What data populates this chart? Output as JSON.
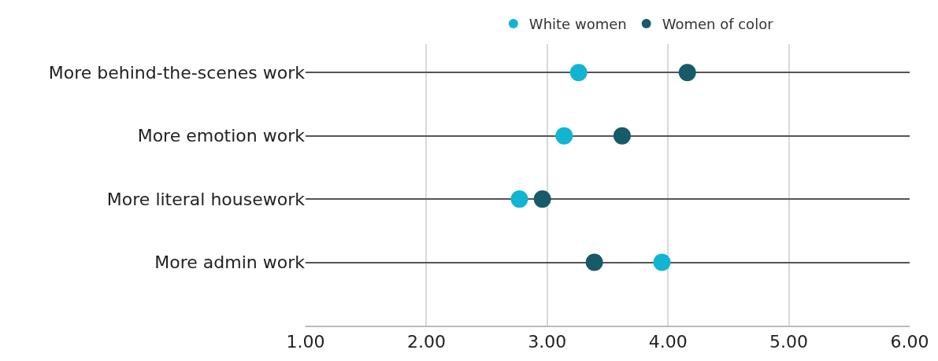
{
  "chart_data": {
    "type": "scatter",
    "orientation": "horizontal",
    "categories": [
      "More behind-the-scenes work",
      "More emotion work",
      "More literal housework",
      "More admin work"
    ],
    "series": [
      {
        "name": "White women",
        "color": "#12b5d1",
        "values": [
          3.26,
          3.14,
          2.77,
          3.95
        ]
      },
      {
        "name": "Women of color",
        "color": "#175a69",
        "values": [
          4.16,
          3.62,
          2.96,
          3.39
        ]
      }
    ],
    "xlim": [
      1,
      6
    ],
    "xticks": [
      {
        "value": 1,
        "label": "1.00"
      },
      {
        "value": 2,
        "label": "2.00"
      },
      {
        "value": 3,
        "label": "3.00"
      },
      {
        "value": 4,
        "label": "4.00"
      },
      {
        "value": 5,
        "label": "5.00"
      },
      {
        "value": 6,
        "label": "6.00"
      }
    ],
    "grid": true,
    "legend": "top",
    "marker": "circle"
  }
}
